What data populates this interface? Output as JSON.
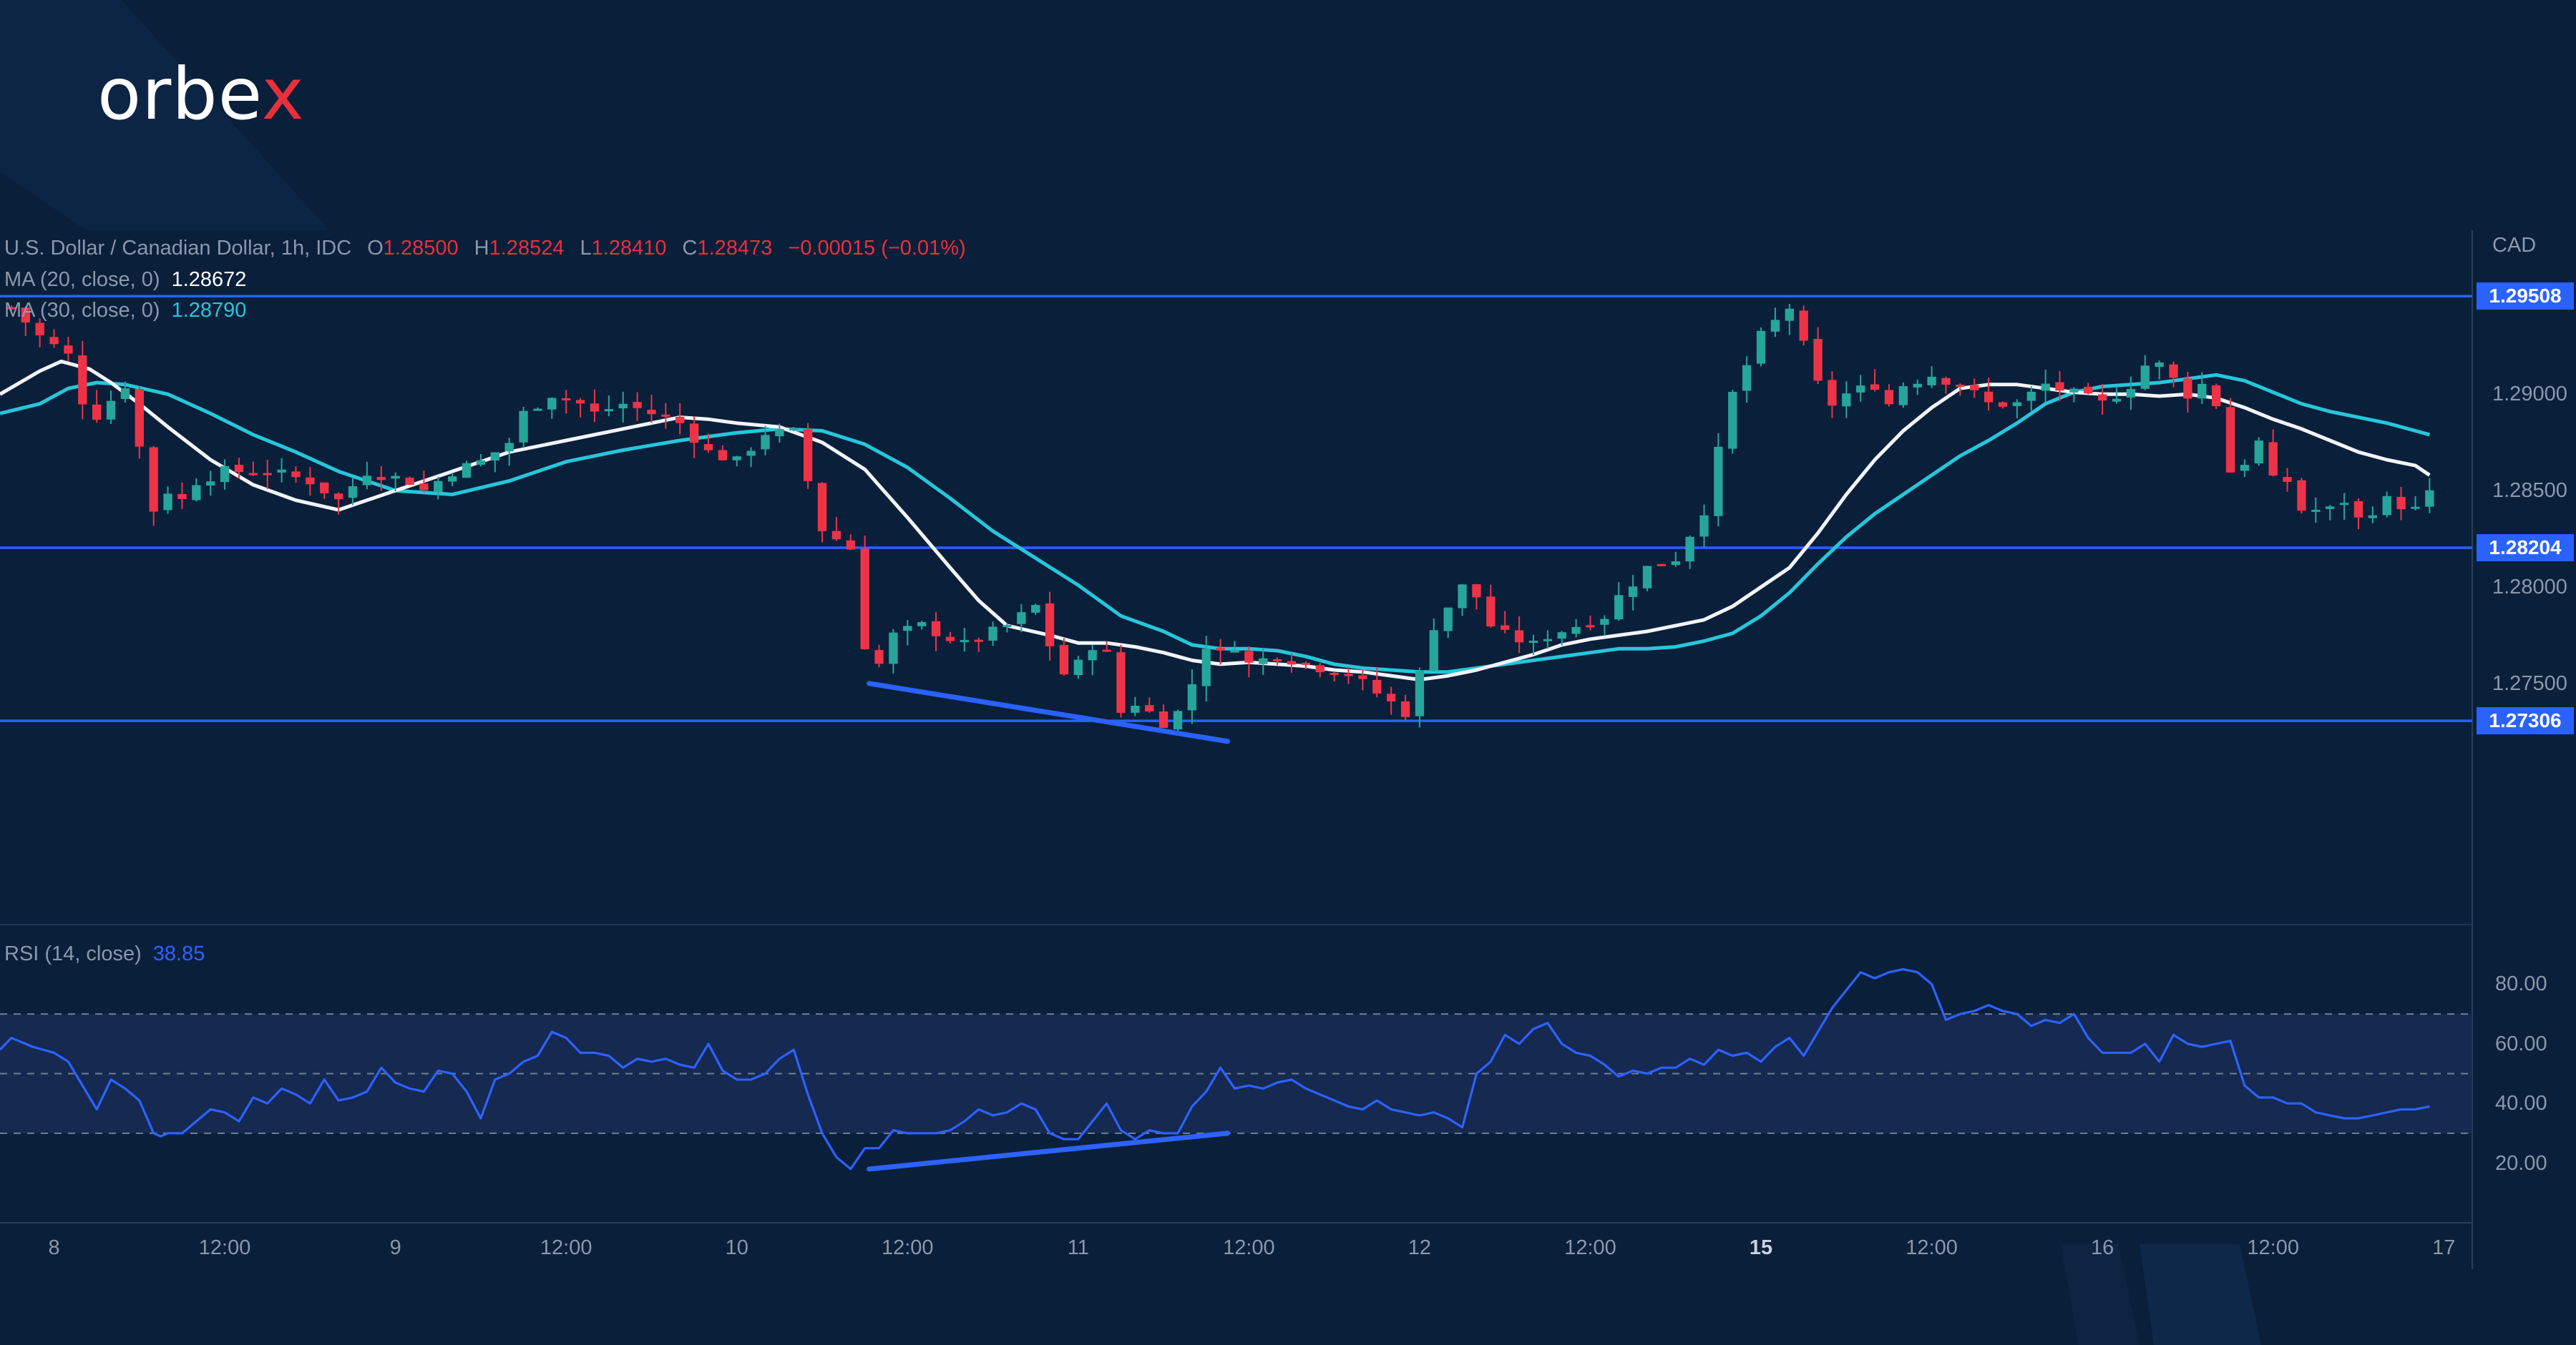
{
  "brand": {
    "name_main": "orbe",
    "name_x": "x"
  },
  "header": {
    "symbol_line": "U.S. Dollar / Canadian Dollar, 1h, IDC",
    "open_label": "O",
    "open": "1.28500",
    "high_label": "H",
    "high": "1.28524",
    "low_label": "L",
    "low": "1.28410",
    "close_label": "C",
    "close": "1.28473",
    "change": "−0.00015 (−0.01%)"
  },
  "indicators": {
    "ma20_label": "MA (20, close, 0)",
    "ma20_value": "1.28672",
    "ma30_label": "MA (30, close, 0)",
    "ma30_value": "1.28790",
    "rsi_label": "RSI (14, close)",
    "rsi_value": "38.85"
  },
  "colors": {
    "background": "#0a1f3a",
    "bull": "#26a69a",
    "bear": "#ef3347",
    "ma20": "#f2f4f7",
    "ma30": "#26c6da",
    "level_line": "#2962ff",
    "rsi_line": "#2d62ff"
  },
  "chart_data": [
    {
      "type": "candlestick",
      "title": "U.S. Dollar / Canadian Dollar, 1h, IDC",
      "currency": "CAD",
      "ylim": [
        1.2625,
        1.2985
      ],
      "y_ticks": [
        "1.29000",
        "1.28500",
        "1.28000",
        "1.27500"
      ],
      "y_tick_values": [
        1.29,
        1.285,
        1.28,
        1.275
      ],
      "x_ticks": [
        "8",
        "12:00",
        "9",
        "12:00",
        "10",
        "12:00",
        "11",
        "12:00",
        "12",
        "12:00",
        "15",
        "12:00",
        "16",
        "12:00",
        "17"
      ],
      "x_tick_hours": [
        0,
        12,
        24,
        36,
        48,
        60,
        72,
        84,
        96,
        108,
        120,
        132,
        144,
        156,
        168
      ],
      "hour_range": [
        -3.8,
        170
      ],
      "levels": [
        {
          "price": 1.29508,
          "label": "1.29508"
        },
        {
          "price": 1.28204,
          "label": "1.28204"
        },
        {
          "price": 1.27306,
          "label": "1.27306"
        }
      ],
      "trendline": {
        "hours": [
          57.3,
          82.5
        ],
        "prices": [
          1.275,
          1.272
        ]
      },
      "close_anchors": {
        "hours": [
          -3,
          -1,
          1,
          2.5,
          5,
          7,
          8,
          9,
          10,
          12,
          15,
          18,
          20,
          22,
          25,
          26,
          28,
          30,
          32,
          33,
          35,
          37,
          38,
          40,
          42,
          44,
          46,
          48,
          50,
          52,
          54,
          56,
          56.5,
          57,
          58,
          59,
          61,
          64,
          67,
          69,
          70,
          71,
          72,
          73,
          74,
          75,
          76,
          78,
          79,
          80,
          81,
          82,
          83,
          84,
          86,
          88,
          91,
          93,
          94,
          95,
          96,
          97,
          98,
          99,
          100,
          101,
          102,
          104,
          105,
          107,
          109,
          110,
          112,
          114,
          116,
          117,
          118,
          120,
          122,
          123,
          124,
          125,
          126,
          128,
          129,
          130,
          132,
          134,
          136,
          138,
          140,
          142,
          144,
          146,
          147,
          148,
          150,
          151,
          152,
          153,
          154,
          155,
          156,
          157,
          158,
          160,
          161,
          162,
          163,
          164,
          166,
          167
        ],
        "prices": [
          1.2945,
          1.293,
          1.292,
          1.2885,
          1.2905,
          1.284,
          1.285,
          1.2845,
          1.2855,
          1.286,
          1.286,
          1.2855,
          1.2845,
          1.286,
          1.2855,
          1.285,
          1.286,
          1.2865,
          1.2875,
          1.289,
          1.29,
          1.2895,
          1.289,
          1.2895,
          1.289,
          1.2885,
          1.287,
          1.2865,
          1.288,
          1.288,
          1.283,
          1.282,
          1.275,
          1.277,
          1.276,
          1.2775,
          1.278,
          1.277,
          1.278,
          1.279,
          1.277,
          1.2755,
          1.276,
          1.277,
          1.2765,
          1.2735,
          1.274,
          1.273,
          1.2735,
          1.275,
          1.277,
          1.2765,
          1.277,
          1.276,
          1.2765,
          1.276,
          1.2755,
          1.2745,
          1.274,
          1.2735,
          1.2755,
          1.278,
          1.279,
          1.28,
          1.2795,
          1.278,
          1.2775,
          1.277,
          1.2775,
          1.278,
          1.2785,
          1.2795,
          1.281,
          1.2815,
          1.284,
          1.287,
          1.29,
          1.293,
          1.2945,
          1.2925,
          1.2905,
          1.2895,
          1.29,
          1.2905,
          1.2895,
          1.2905,
          1.291,
          1.2905,
          1.2895,
          1.2895,
          1.2905,
          1.29,
          1.2895,
          1.2905,
          1.2915,
          1.2915,
          1.29,
          1.2905,
          1.2895,
          1.286,
          1.2865,
          1.2875,
          1.2855,
          1.2855,
          1.284,
          1.284,
          1.2845,
          1.2835,
          1.284,
          1.2845,
          1.284,
          1.2848
        ]
      },
      "series": [
        {
          "name": "MA (20, close, 0)",
          "hours": [
            -3.8,
            -1,
            0.5,
            2.5,
            4,
            6,
            8,
            11,
            14,
            17,
            20,
            24,
            28,
            32,
            36,
            40,
            44,
            46,
            48,
            51,
            54,
            57,
            60,
            63,
            65,
            67,
            70,
            72,
            74,
            76,
            78,
            80,
            82,
            84,
            86,
            88,
            90,
            92,
            94,
            96,
            98,
            100,
            102,
            104,
            106,
            108,
            110,
            112,
            114,
            116,
            118,
            120,
            122,
            124,
            126,
            128,
            130,
            132,
            134,
            136,
            138,
            140,
            142,
            144,
            146,
            148,
            150,
            152,
            154,
            156,
            158,
            160,
            162,
            164,
            166,
            167
          ],
          "values": [
            1.29,
            1.2912,
            1.2917,
            1.2913,
            1.2906,
            1.2895,
            1.2883,
            1.2866,
            1.2853,
            1.2845,
            1.284,
            1.285,
            1.286,
            1.287,
            1.2876,
            1.2882,
            1.2888,
            1.2887,
            1.2885,
            1.2883,
            1.2875,
            1.2861,
            1.2836,
            1.281,
            1.2793,
            1.278,
            1.2775,
            1.2771,
            1.2771,
            1.2769,
            1.2766,
            1.2762,
            1.276,
            1.2761,
            1.276,
            1.2759,
            1.2757,
            1.2756,
            1.2754,
            1.2752,
            1.2754,
            1.2757,
            1.2761,
            1.2765,
            1.277,
            1.2773,
            1.2775,
            1.2777,
            1.278,
            1.2783,
            1.279,
            1.28,
            1.281,
            1.2828,
            1.2848,
            1.2866,
            1.2881,
            1.2893,
            1.2903,
            1.2905,
            1.2905,
            1.2903,
            1.2901,
            1.29,
            1.29,
            1.2899,
            1.29,
            1.2898,
            1.2893,
            1.2887,
            1.2882,
            1.2876,
            1.287,
            1.2866,
            1.2863,
            1.2858
          ]
        },
        {
          "name": "MA (30, close, 0)",
          "hours": [
            -3.8,
            -1,
            1,
            3,
            5,
            8,
            11,
            14,
            17,
            20,
            24,
            28,
            32,
            36,
            40,
            44,
            48,
            51,
            54,
            57,
            60,
            63,
            66,
            69,
            72,
            75,
            78,
            80,
            82,
            84,
            86,
            88,
            90,
            92,
            94,
            96,
            98,
            100,
            102,
            104,
            106,
            108,
            110,
            112,
            114,
            116,
            118,
            120,
            122,
            124,
            126,
            128,
            130,
            132,
            134,
            136,
            138,
            140,
            142,
            144,
            146,
            148,
            150,
            152,
            154,
            156,
            158,
            160,
            162,
            164,
            166,
            167
          ],
          "values": [
            1.289,
            1.2895,
            1.2903,
            1.2906,
            1.2905,
            1.29,
            1.289,
            1.2879,
            1.287,
            1.286,
            1.285,
            1.2848,
            1.2855,
            1.2865,
            1.2871,
            1.2876,
            1.288,
            1.2882,
            1.2881,
            1.2874,
            1.2862,
            1.2846,
            1.2829,
            1.2815,
            1.2801,
            1.2785,
            1.2777,
            1.277,
            1.2768,
            1.2768,
            1.2767,
            1.2764,
            1.276,
            1.2758,
            1.2757,
            1.2756,
            1.2756,
            1.2758,
            1.276,
            1.2762,
            1.2764,
            1.2766,
            1.2768,
            1.2768,
            1.2769,
            1.2772,
            1.2776,
            1.2785,
            1.2797,
            1.2812,
            1.2826,
            1.2838,
            1.2848,
            1.2858,
            1.2868,
            1.2876,
            1.2885,
            1.2895,
            1.2901,
            1.2904,
            1.2905,
            1.2906,
            1.2908,
            1.291,
            1.2907,
            1.2901,
            1.2895,
            1.2891,
            1.2888,
            1.2885,
            1.2881,
            1.2879
          ]
        }
      ]
    },
    {
      "type": "line",
      "title": "RSI (14, close)",
      "ylim": [
        0,
        100
      ],
      "y_ticks": [
        "80.00",
        "60.00",
        "40.00",
        "20.00"
      ],
      "y_tick_values": [
        80,
        60,
        40,
        20
      ],
      "dashed_levels": [
        70,
        50,
        30
      ],
      "band": [
        30,
        70
      ],
      "trendline": {
        "hours": [
          57.3,
          82.5
        ],
        "values": [
          18,
          30
        ]
      },
      "series": [
        {
          "name": "RSI (14, close)",
          "hours": [
            -3.8,
            -3,
            -1.5,
            0,
            1,
            2,
            3,
            4,
            5,
            6,
            7,
            7.5,
            8,
            9,
            10,
            11,
            12,
            13,
            14,
            15,
            16,
            17,
            18,
            19,
            20,
            21,
            22,
            23,
            24,
            25,
            26,
            27,
            28,
            29,
            30,
            31,
            32,
            33,
            34,
            35,
            36,
            37,
            38,
            39,
            40,
            41,
            42,
            43,
            44,
            45,
            46,
            47,
            48,
            49,
            50,
            51,
            52,
            53,
            54,
            55,
            56,
            57,
            58,
            59,
            60,
            61,
            62,
            63,
            64,
            65,
            66,
            67,
            68,
            69,
            70,
            71,
            72,
            73,
            74,
            75,
            76,
            77,
            78,
            79,
            80,
            81,
            82,
            83,
            84,
            85,
            86,
            87,
            88,
            89,
            90,
            91,
            92,
            93,
            94,
            95,
            96,
            97,
            98,
            99,
            100,
            101,
            102,
            103,
            104,
            105,
            106,
            107,
            108,
            109,
            110,
            111,
            112,
            113,
            114,
            115,
            116,
            117,
            118,
            119,
            120,
            121,
            122,
            123,
            124,
            125,
            126,
            127,
            128,
            129,
            130,
            131,
            132,
            133,
            134,
            135,
            136,
            137,
            138,
            139,
            140,
            141,
            142,
            143,
            144,
            145,
            146,
            147,
            148,
            149,
            150,
            151,
            152,
            153,
            154,
            155,
            156,
            157,
            158,
            159,
            160,
            161,
            162,
            163,
            164,
            165,
            166,
            167
          ],
          "values": [
            58,
            62,
            59,
            57,
            54,
            46,
            38,
            48,
            45,
            41,
            30,
            29,
            30,
            30,
            34,
            38,
            37,
            34,
            42,
            40,
            45,
            43,
            40,
            48,
            41,
            42,
            44,
            52,
            47,
            45,
            44,
            51,
            50,
            44,
            35,
            48,
            50,
            54,
            56,
            64,
            62,
            57,
            57,
            56,
            52,
            55,
            54,
            55,
            53,
            52,
            60,
            51,
            48,
            48,
            50,
            55,
            58,
            43,
            30,
            22,
            18,
            25,
            25,
            31,
            30,
            30,
            30,
            31,
            34,
            38,
            36,
            37,
            40,
            38,
            30,
            28,
            28,
            34,
            40,
            31,
            28,
            31,
            30,
            30,
            39,
            44,
            52,
            45,
            46,
            45,
            47,
            48,
            45,
            43,
            41,
            39,
            38,
            41,
            38,
            37,
            36,
            37,
            35,
            32,
            50,
            54,
            63,
            60,
            65,
            67,
            60,
            57,
            56,
            53,
            49,
            51,
            50,
            52,
            52,
            55,
            53,
            58,
            56,
            57,
            54,
            59,
            62,
            56,
            64,
            72,
            78,
            84,
            82,
            84,
            85,
            84,
            80,
            68,
            70,
            71,
            73,
            71,
            70,
            66,
            68,
            67,
            70,
            62,
            57,
            57,
            57,
            60,
            54,
            63,
            60,
            59,
            60,
            61,
            46,
            42,
            42,
            40,
            40,
            37,
            36,
            35,
            35,
            36,
            37,
            38,
            38,
            39
          ]
        }
      ]
    }
  ]
}
